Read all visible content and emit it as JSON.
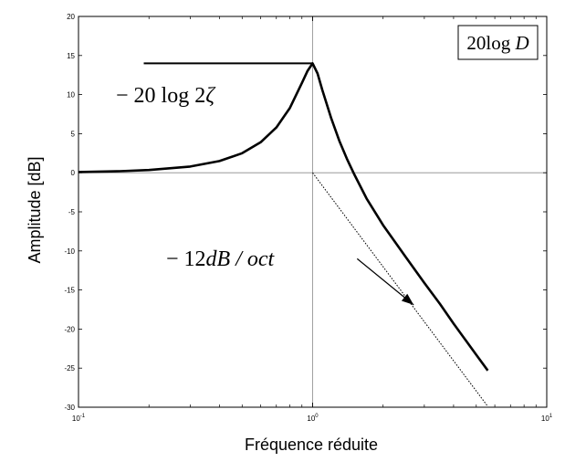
{
  "chart_data": {
    "type": "line",
    "xscale": "log",
    "xlim": [
      0.1,
      10
    ],
    "ylim": [
      -30,
      20
    ],
    "xlabel": "Fréquence réduite",
    "ylabel": "Amplitude [dB]",
    "x_tick_labels": [
      {
        "value": 0.1,
        "base": "10",
        "exp": "-1"
      },
      {
        "value": 1,
        "base": "10",
        "exp": "0"
      },
      {
        "value": 10,
        "base": "10",
        "exp": "1"
      }
    ],
    "y_ticks": [
      20,
      15,
      10,
      5,
      0,
      -5,
      -10,
      -15,
      -20,
      -25,
      -30
    ],
    "series": [
      {
        "style": "thick-solid",
        "color": "#000000",
        "x": [
          0.1,
          0.15,
          0.2,
          0.3,
          0.4,
          0.5,
          0.6,
          0.7,
          0.8,
          0.9,
          0.95,
          1.0,
          1.05,
          1.1,
          1.2,
          1.3,
          1.4,
          1.5,
          1.7,
          2.0,
          2.5,
          3.0,
          3.5,
          4.0,
          4.5,
          5.0,
          5.6
        ],
        "y": [
          0.09,
          0.2,
          0.35,
          0.8,
          1.5,
          2.5,
          3.9,
          5.8,
          8.3,
          11.5,
          13.0,
          14.0,
          12.7,
          10.6,
          7.0,
          4.1,
          1.8,
          -0.1,
          -3.3,
          -6.7,
          -10.8,
          -14.1,
          -16.8,
          -19.3,
          -21.4,
          -23.3,
          -25.3
        ]
      },
      {
        "style": "thin-dotted",
        "color": "#000000",
        "x": [
          1,
          5.6
        ],
        "y": [
          0,
          -29.9
        ]
      }
    ],
    "reference_lines": {
      "vertical_at_x": 1,
      "horizontal_at_y": 0,
      "peak_level": {
        "y": 14,
        "x_from": 0.19,
        "x_to": 1.0
      }
    },
    "annotations": {
      "box_label": {
        "prefix": "20",
        "fn": "log",
        "var": "D",
        "position": "top-right"
      },
      "peak_label": {
        "prefix": "− 20",
        "fn": "log",
        "mid": "2",
        "var": "ζ"
      },
      "slope_label": {
        "prefix": "− 12",
        "var": "dB / oct"
      },
      "arrow": {
        "from": [
          1.55,
          -11
        ],
        "to": [
          2.7,
          -16.9
        ]
      }
    }
  }
}
